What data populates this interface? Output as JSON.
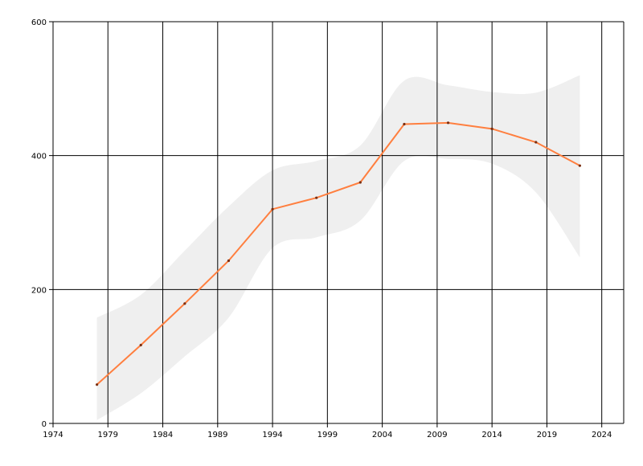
{
  "chart_data": {
    "type": "line",
    "title": "",
    "xlabel": "",
    "ylabel": "",
    "xlim": [
      1974,
      2026
    ],
    "ylim": [
      0,
      600
    ],
    "x_ticks": [
      1974,
      1979,
      1984,
      1989,
      1994,
      1999,
      2004,
      2009,
      2014,
      2019,
      2024
    ],
    "y_ticks": [
      0,
      200,
      400,
      600
    ],
    "grid": true,
    "legend": "none",
    "colors": {
      "line": "#ff7f3f",
      "band": "#efefef",
      "grid": "#000000"
    },
    "series": [
      {
        "x": [
          1978,
          1982,
          1986,
          1990,
          1994,
          1998,
          2002,
          2006,
          2010,
          2014,
          2018,
          2022
        ],
        "y": [
          58,
          117,
          179,
          243,
          320,
          337,
          360,
          447,
          449,
          440,
          420,
          385
        ],
        "lower": [
          5,
          45,
          100,
          158,
          262,
          278,
          303,
          392,
          395,
          388,
          345,
          248
        ],
        "upper": [
          158,
          192,
          258,
          324,
          378,
          392,
          415,
          512,
          505,
          495,
          494,
          520
        ]
      }
    ]
  }
}
